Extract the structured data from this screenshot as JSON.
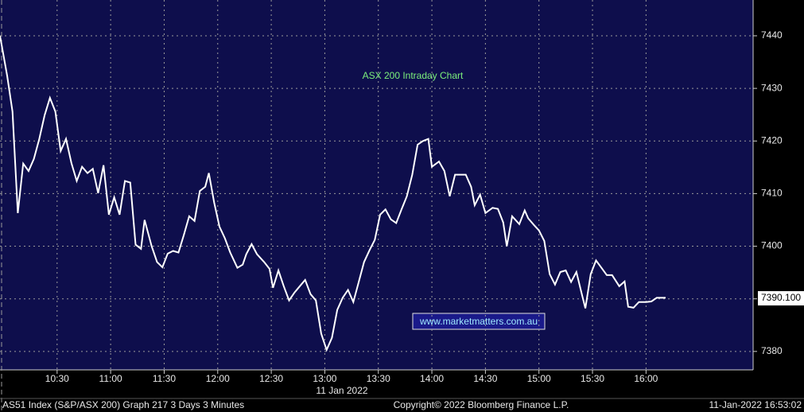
{
  "chart_data": {
    "type": "line",
    "title": "ASX 200 Intraday Chart",
    "watermark": "www.marketmatters.com.au",
    "date_label": "11 Jan 2022",
    "footer": [
      "AS51 Index (S&P/ASX 200) Graph 217 3 Days 3 Minutes",
      "Copyright© 2022 Bloomberg Finance L.P.",
      "11-Jan-2022 16:53:02"
    ],
    "last_value": {
      "value": 7390.1,
      "label": "7390.100"
    },
    "grid": true,
    "xlim": [
      598,
      1020
    ],
    "ylim": [
      7376.5,
      7446.8
    ],
    "xticks": [
      {
        "value": 630,
        "label": "10:30"
      },
      {
        "value": 660,
        "label": "11:00"
      },
      {
        "value": 690,
        "label": "11:30"
      },
      {
        "value": 720,
        "label": "12:00"
      },
      {
        "value": 750,
        "label": "12:30"
      },
      {
        "value": 780,
        "label": "13:00"
      },
      {
        "value": 810,
        "label": "13:30"
      },
      {
        "value": 840,
        "label": "14:00"
      },
      {
        "value": 870,
        "label": "14:30"
      },
      {
        "value": 900,
        "label": "15:00"
      },
      {
        "value": 930,
        "label": "15:30"
      },
      {
        "value": 960,
        "label": "16:00"
      }
    ],
    "yticks": [
      7380,
      7390,
      7400,
      7410,
      7420,
      7430,
      7440
    ],
    "x": [
      598,
      602,
      605,
      608,
      611,
      614,
      617,
      620,
      623,
      626,
      629,
      632,
      635,
      638,
      641,
      644,
      647,
      650,
      653,
      656,
      659,
      662,
      665,
      668,
      671,
      674,
      677,
      679,
      683,
      686,
      689,
      692,
      695,
      698,
      701,
      704,
      707,
      710,
      713,
      715,
      718,
      721,
      724,
      727,
      731,
      734,
      736,
      739,
      742,
      746,
      749,
      751,
      754,
      757,
      760,
      763,
      766,
      769,
      772,
      775,
      778,
      781,
      784,
      787,
      790,
      793,
      796,
      799,
      802,
      805,
      808,
      811,
      814,
      817,
      820,
      823,
      826,
      829,
      832,
      835,
      838,
      840,
      844,
      847,
      850,
      853,
      856,
      859,
      862,
      864,
      867,
      870,
      874,
      877,
      880,
      882,
      885,
      889,
      892,
      894,
      897,
      900,
      903,
      906,
      909,
      912,
      915,
      918,
      921,
      924,
      926,
      929,
      932,
      935,
      938,
      941,
      945,
      948,
      950,
      953,
      956,
      960,
      963,
      966,
      971
    ],
    "series": [
      {
        "name": "AS51 Index",
        "color": "#ffffff",
        "values": [
          7440,
          7432.4,
          7425.6,
          7406.3,
          7415.7,
          7414.3,
          7416.6,
          7420.4,
          7424.9,
          7428.2,
          7425.6,
          7418.1,
          7420.4,
          7415.8,
          7412.4,
          7415.1,
          7413.9,
          7414.7,
          7410.1,
          7415.4,
          7406,
          7409.3,
          7406,
          7412.4,
          7412.1,
          7400.3,
          7399.5,
          7405,
          7400,
          7397,
          7396,
          7398.6,
          7399.1,
          7398.8,
          7402.1,
          7405.7,
          7404.8,
          7410.5,
          7411.3,
          7413.9,
          7408.3,
          7403.7,
          7401.5,
          7398.8,
          7395.9,
          7396.5,
          7398.5,
          7400.4,
          7398.5,
          7397,
          7395.7,
          7392.1,
          7395.4,
          7392.4,
          7389.7,
          7391.2,
          7392.4,
          7393.6,
          7390.9,
          7389.7,
          7383.4,
          7380.3,
          7382.6,
          7387.9,
          7390.2,
          7391.7,
          7389.4,
          7393.2,
          7397,
          7399.2,
          7401.2,
          7406,
          7407,
          7405.1,
          7404.4,
          7407,
          7409.5,
          7413.6,
          7419.3,
          7420,
          7420.4,
          7415.1,
          7416.1,
          7414.3,
          7409.5,
          7413.6,
          7413.6,
          7413.6,
          7411.3,
          7407.8,
          7409.8,
          7406.3,
          7407.3,
          7407.1,
          7404.5,
          7400,
          7405.7,
          7404.2,
          7406.8,
          7405.3,
          7404.1,
          7403,
          7401,
          7394.7,
          7392.7,
          7395.1,
          7395.4,
          7393.2,
          7395.1,
          7390.9,
          7388.2,
          7394.7,
          7397.3,
          7395.9,
          7394.5,
          7394.5,
          7392.4,
          7393.3,
          7388.5,
          7388.3,
          7389.4,
          7389.4,
          7389.5,
          7390.2,
          7390.2
        ]
      }
    ]
  }
}
